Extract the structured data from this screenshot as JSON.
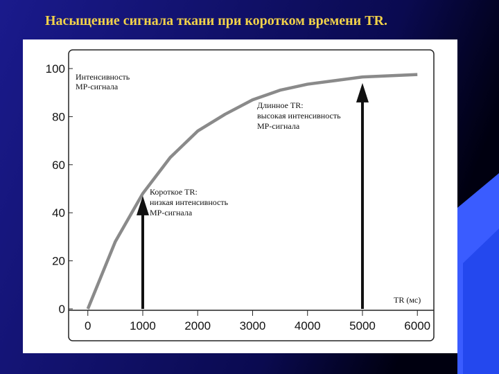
{
  "title": "Насыщение сигнала ткани при коротком времени TR.",
  "chart_data": {
    "type": "line",
    "x": [
      0,
      500,
      1000,
      1500,
      2000,
      2500,
      3000,
      3500,
      4000,
      4500,
      5000,
      5500,
      6000
    ],
    "series": [
      {
        "values": [
          0,
          28,
          48,
          63,
          74,
          81,
          87,
          91,
          93.5,
          95,
          96.5,
          97,
          97.5
        ],
        "color": "#8a8a8a"
      }
    ],
    "xlim": [
      -350,
      6300
    ],
    "ylim": [
      0,
      103
    ],
    "xticks": [
      0,
      1000,
      2000,
      3000,
      4000,
      5000,
      6000
    ],
    "yticks": [
      0,
      20,
      40,
      60,
      80,
      100
    ],
    "y_label_lines": [
      "Интенсивность",
      "МР-сигнала"
    ],
    "x_label": "TR (мс)",
    "arrows": [
      {
        "x": 1000,
        "y": 47
      },
      {
        "x": 5000,
        "y": 94
      }
    ],
    "annotations": [
      {
        "lines": [
          "Короткое TR:",
          "низкая интенсивность",
          "МР-сигнала"
        ]
      },
      {
        "lines": [
          "Длинное TR:",
          "высокая интенсивность",
          "МР-сигнала"
        ]
      }
    ]
  }
}
